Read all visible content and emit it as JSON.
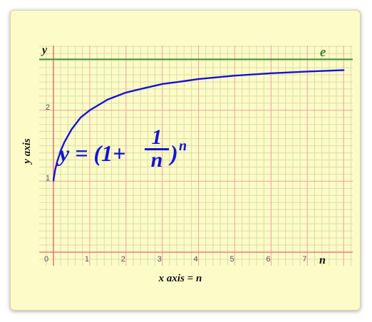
{
  "chart_data": {
    "type": "line",
    "title": "",
    "xlabel": "x axis = n",
    "ylabel": "y axis",
    "x_axis_letter": "n",
    "y_axis_letter": "y",
    "xlim": [
      0,
      8
    ],
    "ylim": [
      0,
      2.72
    ],
    "x_ticks": [
      "0",
      "1",
      "2",
      "3",
      "4",
      "5",
      "6",
      "7"
    ],
    "y_ticks": [
      "1",
      "2"
    ],
    "grid": true,
    "series": [
      {
        "formula": "y = (1+1/n)^n",
        "x": [
          0.01,
          0.05,
          0.1,
          0.2,
          0.3,
          0.5,
          0.75,
          1,
          1.5,
          2,
          2.5,
          3,
          3.5,
          4,
          5,
          6,
          7,
          8
        ],
        "y": [
          1.047,
          1.164,
          1.271,
          1.431,
          1.549,
          1.732,
          1.899,
          2.0,
          2.153,
          2.25,
          2.311,
          2.37,
          2.404,
          2.441,
          2.488,
          2.522,
          2.546,
          2.566
        ],
        "color": "#1414d2"
      }
    ],
    "reference_line": {
      "label": "e",
      "y": 2.718,
      "color": "#4f8f3a"
    },
    "formula_label": {
      "lhs": "y = (1+",
      "numerator": "1",
      "denominator": "n",
      "close": ")",
      "exponent": "n"
    },
    "colors": {
      "background": "#fdfcc8",
      "minor_grid": "#d9dcaa",
      "major_grid": "#f0a8a8",
      "axis": "#e87a7a",
      "curve": "#1414d2",
      "e_line": "#4f8f3a"
    }
  }
}
